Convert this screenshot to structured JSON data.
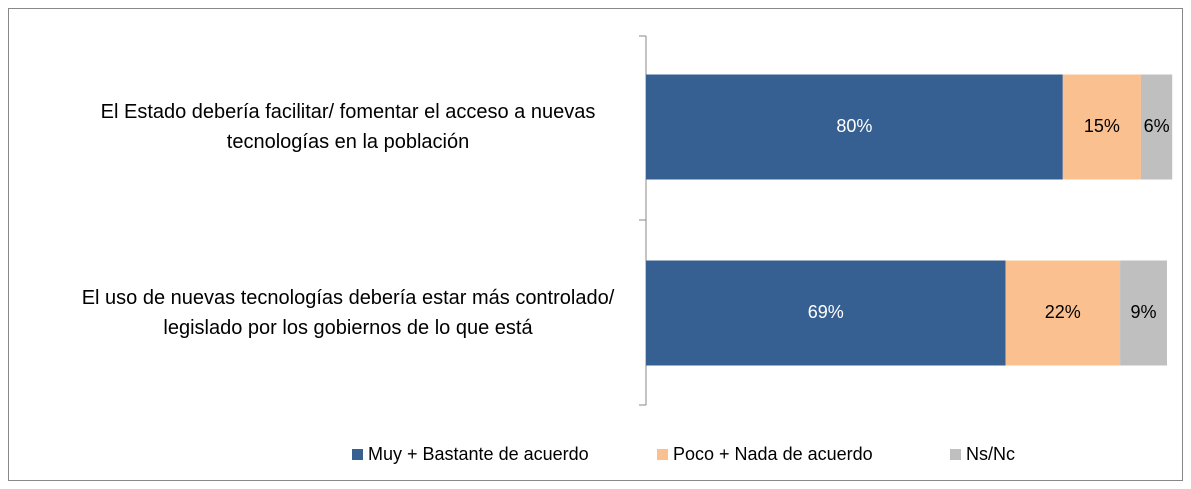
{
  "chart_data": {
    "type": "stacked_barh",
    "categories": [
      "El Estado debería facilitar/ fomentar el acceso a nuevas tecnologías en la población",
      "El uso de nuevas tecnologías debería estar más controlado/ legislado por los gobiernos de lo que está"
    ],
    "series": [
      {
        "name": "Muy + Bastante de acuerdo",
        "color": "#376092",
        "values": [
          80,
          69
        ],
        "value_labels": [
          "80%",
          "69%"
        ]
      },
      {
        "name": "Poco + Nada de acuerdo",
        "color": "#FAC090",
        "values": [
          15,
          22
        ],
        "value_labels": [
          "15%",
          "22%"
        ]
      },
      {
        "name": "Ns/Nc",
        "color": "#BFBFBF",
        "values": [
          6,
          9
        ],
        "value_labels": [
          "6%",
          "9%"
        ]
      }
    ],
    "xlim": [
      0,
      100
    ],
    "legend": "bottom"
  }
}
